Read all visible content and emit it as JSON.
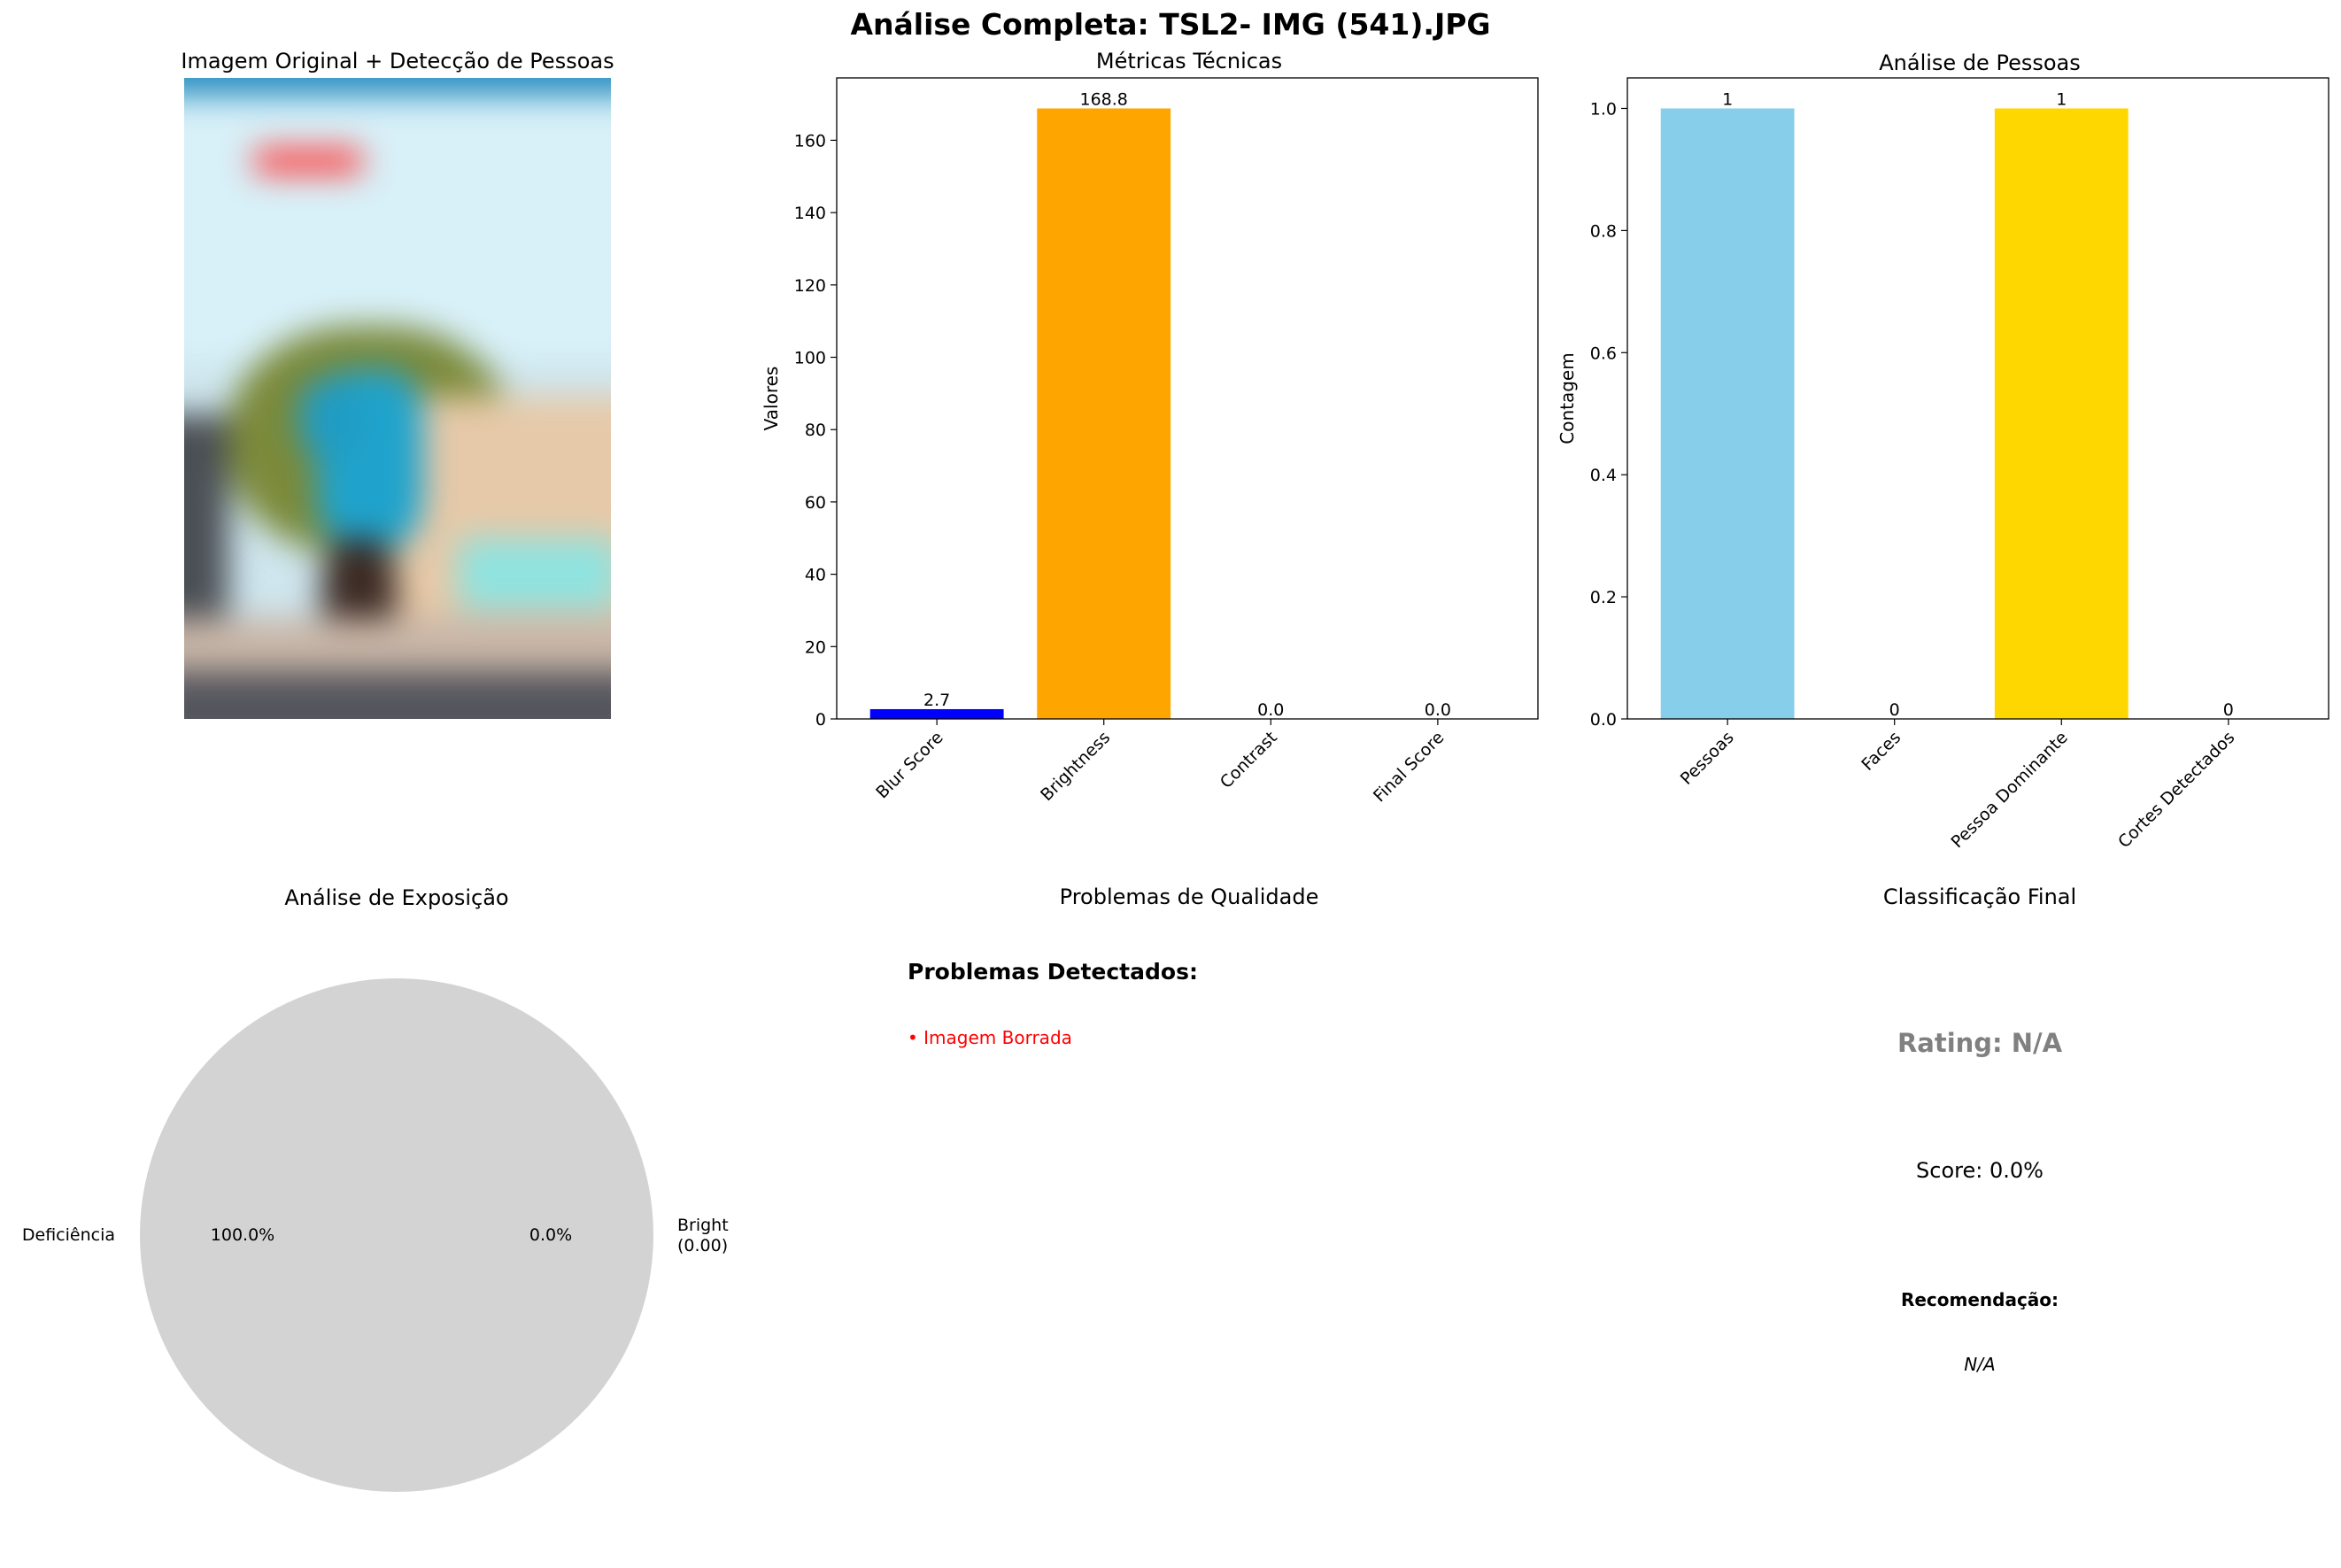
{
  "figure": {
    "title": "Análise Completa: TSL2- IMG  (541).JPG"
  },
  "panels": {
    "image": {
      "title": "Imagem Original + Detecção de Pessoas"
    },
    "metrics": {
      "title": "Métricas Técnicas"
    },
    "people": {
      "title": "Análise de Pessoas"
    },
    "exposure": {
      "title": "Análise de Exposição"
    },
    "issues": {
      "title": "Problemas de Qualidade",
      "heading": "Problemas Detectados:",
      "items": [
        "• Imagem Borrada"
      ],
      "item_color": "#ff0000"
    },
    "classification": {
      "title": "Classificação Final",
      "rating": "Rating: N/A",
      "rating_color": "#808080",
      "score": "Score: 0.0%",
      "recommendation_label": "Recomendação:",
      "recommendation_value": "N/A"
    }
  },
  "chart_data": [
    {
      "type": "bar",
      "title": "Métricas Técnicas",
      "xlabel": "",
      "ylabel": "Valores",
      "categories": [
        "Blur Score",
        "Brightness",
        "Contrast",
        "Final Score"
      ],
      "values": [
        2.7,
        168.8,
        0.0,
        0.0
      ],
      "value_labels": [
        "2.7",
        "168.8",
        "0.0",
        "0.0"
      ],
      "colors": [
        "#0000ff",
        "#ffa500",
        "#ff0000",
        "#008000"
      ],
      "ylim": [
        0,
        177.24
      ],
      "yticks": [
        0,
        20,
        40,
        60,
        80,
        100,
        120,
        140,
        160
      ],
      "grid": false
    },
    {
      "type": "bar",
      "title": "Análise de Pessoas",
      "xlabel": "",
      "ylabel": "Contagem",
      "categories": [
        "Pessoas",
        "Faces",
        "Pessoa Dominante",
        "Cortes Detectados"
      ],
      "values": [
        1,
        0,
        1,
        0
      ],
      "value_labels": [
        "1",
        "0",
        "1",
        "0"
      ],
      "colors": [
        "#87ceeb",
        "#90ee90",
        "#ffd700",
        "#ff0000"
      ],
      "ylim": [
        0,
        1.05
      ],
      "yticks": [
        "0.0",
        "0.2",
        "0.4",
        "0.6",
        "0.8",
        "1.0"
      ],
      "grid": false
    },
    {
      "type": "pie",
      "title": "Análise de Exposição",
      "labels": [
        "Deficiência",
        "Bright\n(0.00)"
      ],
      "values": [
        100.0,
        0.0
      ],
      "pct_labels": [
        "100.0%",
        "0.0%"
      ],
      "colors": [
        "#d3d3d3",
        "#ffd700"
      ]
    }
  ]
}
